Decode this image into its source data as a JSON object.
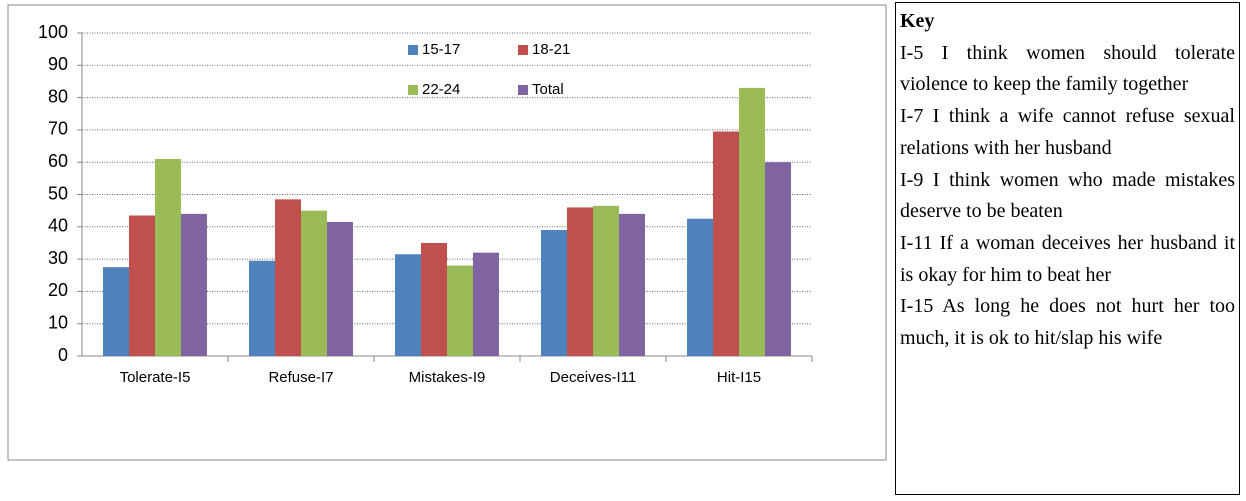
{
  "chart_data": {
    "type": "bar",
    "categories": [
      "Tolerate-I5",
      "Refuse-I7",
      "Mistakes-I9",
      "Deceives-I11",
      "Hit-I15"
    ],
    "series": [
      {
        "name": "15-17",
        "color": "#4f81bd",
        "values": [
          27.5,
          29.5,
          31.5,
          39,
          42.5
        ]
      },
      {
        "name": "18-21",
        "color": "#c0504d",
        "values": [
          43.5,
          48.5,
          35,
          46,
          69.5
        ]
      },
      {
        "name": "22-24",
        "color": "#9bbb59",
        "values": [
          61,
          45,
          28,
          46.5,
          83
        ]
      },
      {
        "name": "Total",
        "color": "#8064a2",
        "values": [
          44,
          41.5,
          32,
          44,
          60
        ]
      }
    ],
    "ylim": [
      0,
      100
    ],
    "yticks": [
      0,
      10,
      20,
      30,
      40,
      50,
      60,
      70,
      80,
      90,
      100
    ],
    "grid": true,
    "legend": "top"
  },
  "key": {
    "title": "Key",
    "items": [
      "I-5 I think women should tolerate violence to keep the family together",
      "I-7 I think a wife cannot refuse sexual relations with her husband",
      "I-9 I think women who made mistakes deserve to be beaten",
      "I-11 If a woman deceives her husband it is okay for him to beat her",
      "I-15 As long he does not hurt her too much, it is ok to hit/slap his wife"
    ]
  }
}
